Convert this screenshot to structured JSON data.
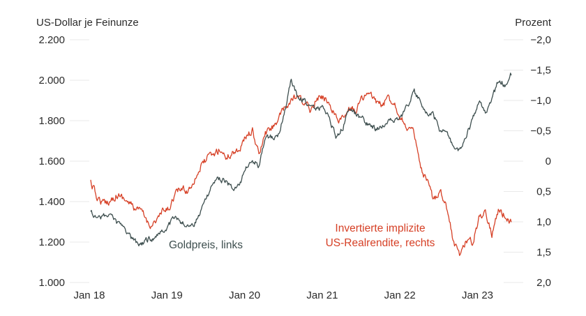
{
  "chart_data": {
    "type": "line",
    "left_axis_title": "US-Dollar je Feinunze",
    "right_axis_title": "Prozent",
    "x_ticks": [
      "Jan 18",
      "Jan 19",
      "Jan 20",
      "Jan 21",
      "Jan 22",
      "Jan 23"
    ],
    "left_ticks": [
      "2.200",
      "2.000",
      "1.800",
      "1.600",
      "1.400",
      "1.200",
      "1.000"
    ],
    "left_tick_values": [
      2200,
      2000,
      1800,
      1600,
      1400,
      1200,
      1000
    ],
    "right_ticks": [
      "−2,0",
      "−1,5",
      "−1,0",
      "−0,5",
      "0",
      "0,5",
      "1,0",
      "1,5",
      "2,0"
    ],
    "right_tick_values": [
      -2.0,
      -1.5,
      -1.0,
      -0.5,
      0,
      0.5,
      1.0,
      1.5,
      2.0
    ],
    "ylim_left": [
      1000,
      2200
    ],
    "ylim_right_inverted": [
      2.0,
      -2.0
    ],
    "x_range": [
      "2018-01",
      "2023-06"
    ],
    "grid": "horizontal",
    "colors": {
      "gold": "#3d4e4e",
      "real": "#d64026"
    },
    "series": [
      {
        "name": "Goldpreis, links",
        "axis": "left",
        "x": [
          "2018-01",
          "2018-02",
          "2018-03",
          "2018-04",
          "2018-05",
          "2018-06",
          "2018-07",
          "2018-08",
          "2018-09",
          "2018-10",
          "2018-11",
          "2018-12",
          "2019-01",
          "2019-02",
          "2019-03",
          "2019-04",
          "2019-05",
          "2019-06",
          "2019-07",
          "2019-08",
          "2019-09",
          "2019-10",
          "2019-11",
          "2019-12",
          "2020-01",
          "2020-02",
          "2020-03",
          "2020-04",
          "2020-05",
          "2020-06",
          "2020-07",
          "2020-08",
          "2020-09",
          "2020-10",
          "2020-11",
          "2020-12",
          "2021-01",
          "2021-02",
          "2021-03",
          "2021-04",
          "2021-05",
          "2021-06",
          "2021-07",
          "2021-08",
          "2021-09",
          "2021-10",
          "2021-11",
          "2021-12",
          "2022-01",
          "2022-02",
          "2022-03",
          "2022-04",
          "2022-05",
          "2022-06",
          "2022-07",
          "2022-08",
          "2022-09",
          "2022-10",
          "2022-11",
          "2022-12",
          "2023-01",
          "2023-02",
          "2023-03",
          "2023-04",
          "2023-05",
          "2023-06"
        ],
        "values": [
          1340,
          1330,
          1325,
          1335,
          1300,
          1270,
          1230,
          1200,
          1195,
          1215,
          1220,
          1245,
          1285,
          1320,
          1300,
          1280,
          1285,
          1350,
          1420,
          1500,
          1510,
          1495,
          1465,
          1480,
          1560,
          1600,
          1580,
          1700,
          1720,
          1730,
          1850,
          2000,
          1920,
          1900,
          1860,
          1860,
          1860,
          1800,
          1720,
          1770,
          1860,
          1830,
          1810,
          1780,
          1760,
          1780,
          1800,
          1800,
          1820,
          1880,
          1940,
          1900,
          1830,
          1830,
          1740,
          1760,
          1670,
          1650,
          1720,
          1800,
          1900,
          1840,
          1900,
          2000,
          1980,
          2030
        ]
      },
      {
        "name": "Invertierte implizite US-Realrendite, rechts",
        "axis": "right",
        "x": [
          "2018-01",
          "2018-02",
          "2018-03",
          "2018-04",
          "2018-05",
          "2018-06",
          "2018-07",
          "2018-08",
          "2018-09",
          "2018-10",
          "2018-11",
          "2018-12",
          "2019-01",
          "2019-02",
          "2019-03",
          "2019-04",
          "2019-05",
          "2019-06",
          "2019-07",
          "2019-08",
          "2019-09",
          "2019-10",
          "2019-11",
          "2019-12",
          "2020-01",
          "2020-02",
          "2020-03",
          "2020-04",
          "2020-05",
          "2020-06",
          "2020-07",
          "2020-08",
          "2020-09",
          "2020-10",
          "2020-11",
          "2020-12",
          "2021-01",
          "2021-02",
          "2021-03",
          "2021-04",
          "2021-05",
          "2021-06",
          "2021-07",
          "2021-08",
          "2021-09",
          "2021-10",
          "2021-11",
          "2021-12",
          "2022-01",
          "2022-02",
          "2022-03",
          "2022-04",
          "2022-05",
          "2022-06",
          "2022-07",
          "2022-08",
          "2022-09",
          "2022-10",
          "2022-11",
          "2022-12",
          "2023-01",
          "2023-02",
          "2023-03",
          "2023-04",
          "2023-05",
          "2023-06"
        ],
        "values": [
          0.35,
          0.6,
          0.7,
          0.65,
          0.55,
          0.6,
          0.7,
          0.8,
          0.85,
          1.05,
          1.0,
          0.85,
          0.8,
          0.55,
          0.45,
          0.5,
          0.3,
          0.1,
          -0.05,
          -0.1,
          -0.2,
          -0.05,
          -0.15,
          -0.2,
          -0.4,
          -0.5,
          -0.1,
          -0.45,
          -0.55,
          -0.7,
          -0.85,
          -1.0,
          -1.05,
          -0.95,
          -0.85,
          -1.05,
          -1.05,
          -0.95,
          -0.7,
          -0.7,
          -0.85,
          -0.85,
          -1.05,
          -1.1,
          -1.0,
          -0.9,
          -1.05,
          -0.95,
          -0.7,
          -0.55,
          -0.45,
          0.15,
          0.35,
          0.65,
          0.45,
          0.75,
          1.3,
          1.55,
          1.3,
          1.35,
          0.95,
          0.8,
          1.2,
          0.8,
          0.9,
          1.0
        ]
      }
    ]
  }
}
